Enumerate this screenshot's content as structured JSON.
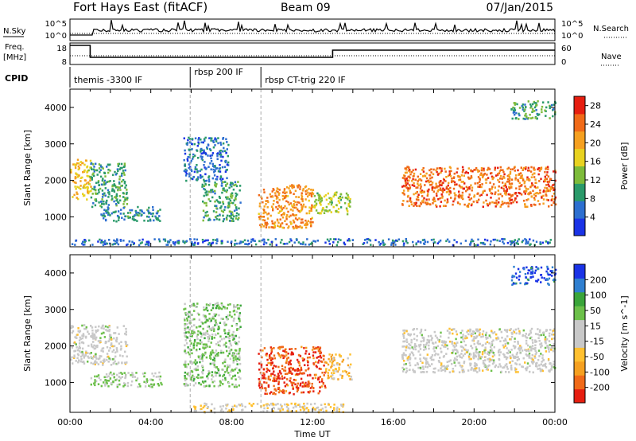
{
  "header": {
    "station": "Fort Hays East (fitACF)",
    "beam": "Beam 09",
    "date": "07/Jan/2015"
  },
  "summary_panel": {
    "nsky_label": "N.Sky",
    "nsearch_label": "N.Search",
    "noise_ticks": [
      "10^5",
      "10^0"
    ],
    "freq_label_line1": "Freq.",
    "freq_label_line2": "[MHz]",
    "freq_ticks": [
      "18",
      "8"
    ],
    "nave_label": "Nave",
    "nave_ticks": [
      "60",
      "0"
    ],
    "cpid_label": "CPID",
    "cpid_segments": [
      {
        "label": "themis -3300 IF",
        "start": 0.0
      },
      {
        "label": "rbsp 200 IF",
        "start": 5.95
      },
      {
        "label": "rbsp CT-trig 220 IF",
        "start": 9.45
      }
    ]
  },
  "chart_data": [
    {
      "type": "heatmap",
      "title": "",
      "xlabel": "",
      "ylabel": "Slant Range [km]",
      "xlim": [
        0,
        24
      ],
      "ylim": [
        180,
        4500
      ],
      "yticks": [
        1000,
        2000,
        3000,
        4000
      ],
      "colorbar": {
        "label": "Power [dB]",
        "ticks": [
          "4",
          "8",
          "12",
          "16",
          "20",
          "24",
          "28"
        ],
        "range": [
          0,
          30
        ],
        "colors": [
          "#1a33e6",
          "#2d6fd0",
          "#2a9a6a",
          "#7dbb3a",
          "#e8d220",
          "#f5a020",
          "#f06a18",
          "#e61e10"
        ]
      },
      "regions": [
        {
          "t0": 0.0,
          "t1": 1.0,
          "r0": 1500,
          "r1": 2600,
          "level": 18
        },
        {
          "t0": 1.0,
          "t1": 2.8,
          "r0": 1250,
          "r1": 2500,
          "level": 10
        },
        {
          "t0": 1.5,
          "t1": 4.5,
          "r0": 900,
          "r1": 1300,
          "level": 8
        },
        {
          "t0": 5.6,
          "t1": 7.8,
          "r0": 2000,
          "r1": 3200,
          "level": 6
        },
        {
          "t0": 6.5,
          "t1": 8.4,
          "r0": 900,
          "r1": 2000,
          "level": 10
        },
        {
          "t0": 9.3,
          "t1": 12.0,
          "r0": 700,
          "r1": 1900,
          "level": 22
        },
        {
          "t0": 12.0,
          "t1": 13.9,
          "r0": 1100,
          "r1": 1700,
          "level": 14
        },
        {
          "t0": 16.4,
          "t1": 24.0,
          "r0": 1300,
          "r1": 2400,
          "level": 24
        },
        {
          "t0": 21.8,
          "t1": 24.0,
          "r0": 3700,
          "r1": 4200,
          "level": 10
        },
        {
          "t0": 0.0,
          "t1": 24.0,
          "r0": 250,
          "r1": 420,
          "level": 6
        }
      ]
    },
    {
      "type": "heatmap",
      "title": "",
      "xlabel": "Time UT",
      "ylabel": "Slant Range [km]",
      "xlim": [
        0,
        24
      ],
      "ylim": [
        180,
        4500
      ],
      "xticks": [
        "00:00",
        "04:00",
        "08:00",
        "12:00",
        "16:00",
        "20:00",
        "00:00"
      ],
      "yticks": [
        1000,
        2000,
        3000,
        4000
      ],
      "colorbar": {
        "label": "Velocity [m s^-1]",
        "ticks": [
          "200",
          "100",
          "50",
          "15",
          "-15",
          "-50",
          "-100",
          "-200"
        ],
        "range": [
          -250,
          250
        ],
        "colors": [
          "#e61e10",
          "#f06a18",
          "#f5a020",
          "#ffc030",
          "#c8c8c8",
          "#c8c8c8",
          "#6cc04a",
          "#3aa53a",
          "#2f7fd0",
          "#1a33e6"
        ]
      },
      "regions": [
        {
          "t0": 0.0,
          "t1": 2.8,
          "r0": 1500,
          "r1": 2600,
          "level": 0
        },
        {
          "t0": 1.0,
          "t1": 4.5,
          "r0": 900,
          "r1": 1300,
          "level": 40
        },
        {
          "t0": 5.6,
          "t1": 8.4,
          "r0": 900,
          "r1": 3200,
          "level": 60
        },
        {
          "t0": 9.3,
          "t1": 12.6,
          "r0": 700,
          "r1": 2000,
          "level": -200
        },
        {
          "t0": 12.6,
          "t1": 13.9,
          "r0": 1100,
          "r1": 1800,
          "level": -80
        },
        {
          "t0": 16.4,
          "t1": 24.0,
          "r0": 1300,
          "r1": 2500,
          "level": 0
        },
        {
          "t0": 21.8,
          "t1": 24.0,
          "r0": 3700,
          "r1": 4200,
          "level": 200
        },
        {
          "t0": 6.0,
          "t1": 13.5,
          "r0": 200,
          "r1": 450,
          "level": -40
        }
      ]
    }
  ]
}
